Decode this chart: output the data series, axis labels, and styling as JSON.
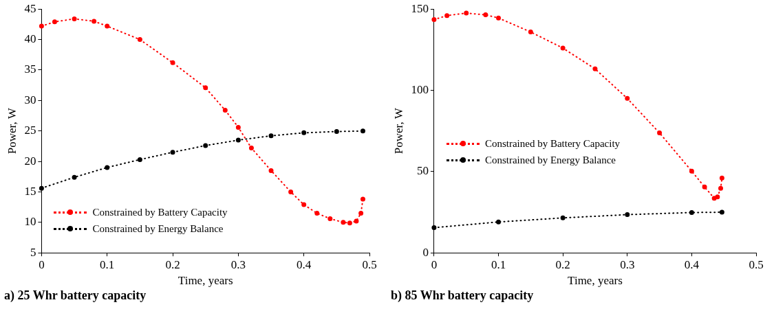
{
  "chart_data": [
    {
      "type": "line",
      "title": "a) 25 Whr battery capacity",
      "xlabel": "Time, years",
      "ylabel": "Power, W",
      "xlim": [
        0,
        0.5
      ],
      "xticks": [
        0,
        0.1,
        0.2,
        0.3,
        0.4,
        0.5
      ],
      "ylim": [
        5,
        45
      ],
      "yticks": [
        5,
        10,
        15,
        20,
        25,
        30,
        35,
        40,
        45
      ],
      "grid": false,
      "legend": "bottom left",
      "marker": "circle",
      "line_style": "dotted",
      "series": [
        {
          "name": "Constrained by Battery Capacity",
          "color": "#ff0000",
          "x": [
            0,
            0.02,
            0.05,
            0.08,
            0.1,
            0.15,
            0.2,
            0.25,
            0.28,
            0.3,
            0.32,
            0.35,
            0.38,
            0.4,
            0.42,
            0.44,
            0.46,
            0.47,
            0.48,
            0.487,
            0.49
          ],
          "values": [
            42.2,
            42.9,
            43.4,
            43.0,
            42.2,
            40.0,
            36.2,
            32.1,
            28.4,
            25.6,
            22.2,
            18.5,
            15.0,
            12.9,
            11.5,
            10.6,
            10.0,
            9.9,
            10.2,
            11.5,
            13.8
          ]
        },
        {
          "name": "Constrained by Energy Balance",
          "color": "#000000",
          "x": [
            0,
            0.05,
            0.1,
            0.15,
            0.2,
            0.25,
            0.3,
            0.35,
            0.4,
            0.45,
            0.49
          ],
          "values": [
            15.6,
            17.4,
            19.0,
            20.3,
            21.5,
            22.6,
            23.5,
            24.2,
            24.7,
            24.9,
            25.0
          ]
        }
      ]
    },
    {
      "type": "line",
      "title": "b) 85 Whr battery capacity",
      "xlabel": "Time, years",
      "ylabel": "Power, W",
      "xlim": [
        0,
        0.5
      ],
      "xticks": [
        0,
        0.1,
        0.2,
        0.3,
        0.4,
        0.5
      ],
      "ylim": [
        0,
        150
      ],
      "yticks": [
        0,
        50,
        100,
        150
      ],
      "grid": false,
      "legend": "left",
      "marker": "circle",
      "line_style": "dotted",
      "series": [
        {
          "name": "Constrained by Battery Capacity",
          "color": "#ff0000",
          "x": [
            0,
            0.02,
            0.05,
            0.08,
            0.1,
            0.15,
            0.2,
            0.25,
            0.3,
            0.35,
            0.4,
            0.42,
            0.435,
            0.44,
            0.445,
            0.447
          ],
          "values": [
            143.5,
            146,
            147.5,
            146.5,
            144.5,
            135.9,
            126,
            113.2,
            95,
            73.8,
            50.3,
            40.5,
            33.6,
            34.4,
            39.7,
            46
          ]
        },
        {
          "name": "Constrained by Energy Balance",
          "color": "#000000",
          "x": [
            0,
            0.1,
            0.2,
            0.3,
            0.4,
            0.447
          ],
          "values": [
            15.5,
            19,
            21.5,
            23.5,
            24.8,
            25
          ]
        }
      ]
    }
  ]
}
